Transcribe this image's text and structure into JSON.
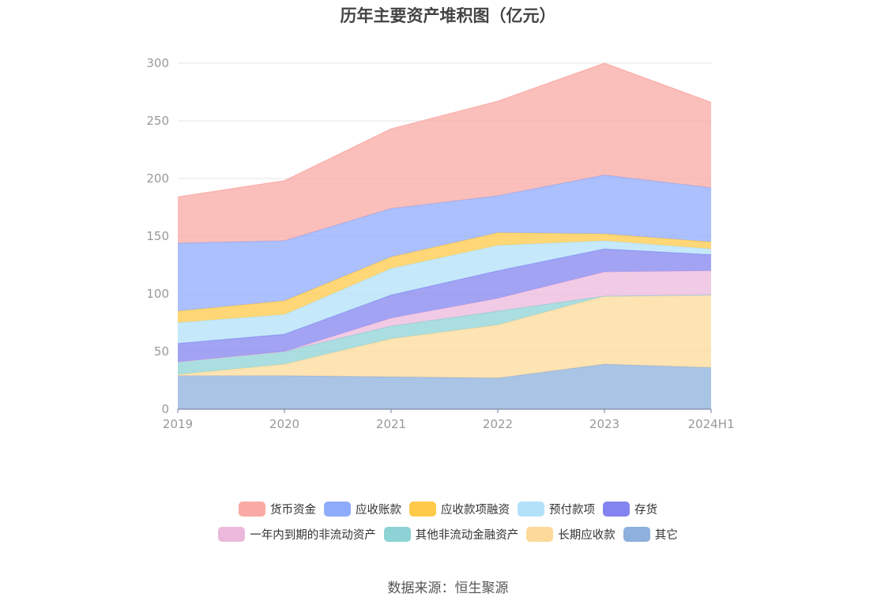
{
  "chart_data": {
    "type": "area",
    "stacked": true,
    "title": "历年主要资产堆积图（亿元）",
    "categories": [
      "2019",
      "2020",
      "2021",
      "2022",
      "2023",
      "2024H1"
    ],
    "ylim": [
      0,
      300
    ],
    "yticks": [
      0,
      50,
      100,
      150,
      200,
      250,
      300
    ],
    "series": [
      {
        "name": "其它",
        "color": "#8eb0dc",
        "values": [
          29,
          29,
          28,
          27,
          39,
          36
        ]
      },
      {
        "name": "长期应收款",
        "color": "#fdd99a",
        "values": [
          1,
          10,
          33,
          46,
          59,
          63
        ]
      },
      {
        "name": "其他非流动金融资产",
        "color": "#8dd3d5",
        "values": [
          11,
          11,
          11,
          12,
          0,
          0
        ]
      },
      {
        "name": "一年内到期的非流动资产",
        "color": "#ecb9dc",
        "values": [
          0,
          0,
          7,
          11,
          21,
          21
        ]
      },
      {
        "name": "存货",
        "color": "#8484f0",
        "values": [
          16,
          15,
          20,
          24,
          20,
          14
        ]
      },
      {
        "name": "预付款项",
        "color": "#b2e2fa",
        "values": [
          18,
          17,
          23,
          22,
          7,
          5
        ]
      },
      {
        "name": "应收款项融资",
        "color": "#ffc94a",
        "values": [
          10,
          12,
          10,
          11,
          6,
          6
        ]
      },
      {
        "name": "应收账款",
        "color": "#8fabfc",
        "values": [
          59,
          52,
          42,
          32,
          51,
          47
        ]
      },
      {
        "name": "货币资金",
        "color": "#faaaa4",
        "values": [
          40,
          52,
          69,
          82,
          97,
          74
        ]
      }
    ],
    "legend_order": [
      "货币资金",
      "应收账款",
      "应收款项融资",
      "预付款项",
      "存货",
      "一年内到期的非流动资产",
      "其他非流动金融资产",
      "长期应收款",
      "其它"
    ],
    "legend_position": "bottom-center"
  },
  "source_note": "数据来源：恒生聚源"
}
